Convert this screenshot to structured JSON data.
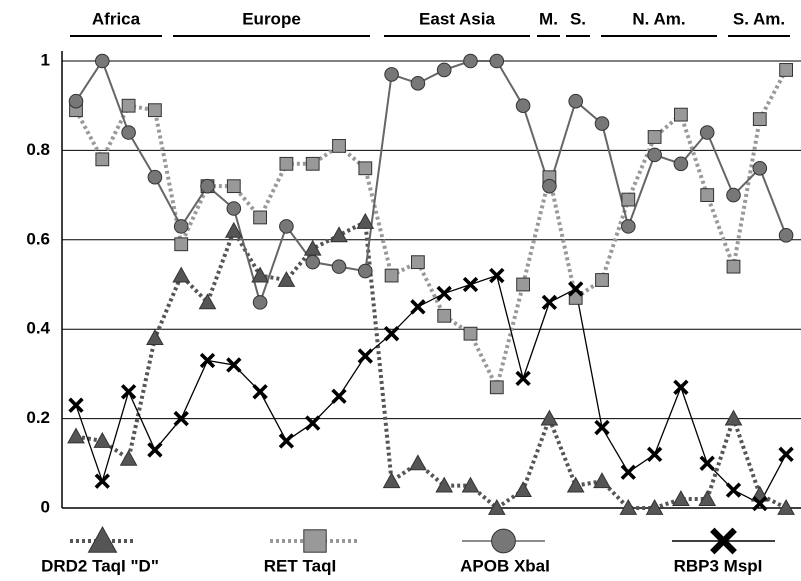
{
  "chart_data": {
    "type": "line",
    "regions": [
      "Africa",
      "Europe",
      "East Asia",
      "M.",
      "S.",
      "N. Am.",
      "S. Am."
    ],
    "categories": [
      null,
      null,
      null,
      null,
      null,
      null,
      null,
      null,
      null,
      null,
      null,
      null,
      null,
      null,
      null,
      null,
      null,
      null,
      null,
      null,
      null,
      null,
      null,
      null,
      null,
      null,
      null,
      null
    ],
    "series": [
      {
        "name": "DRD2 TaqI \"D\"",
        "color": "#555555",
        "marker": "triangle",
        "dash": true,
        "values": [
          0.16,
          0.15,
          0.11,
          0.38,
          0.52,
          0.46,
          0.62,
          0.52,
          0.51,
          0.58,
          0.61,
          0.64,
          0.06,
          0.1,
          0.05,
          0.05,
          0.0,
          0.04,
          0.2,
          0.05,
          0.06,
          0.0,
          0.0,
          0.02,
          0.02,
          0.2,
          0.03,
          0.0
        ]
      },
      {
        "name": "RET TaqI",
        "color": "#999999",
        "marker": "square",
        "dash": true,
        "values": [
          0.89,
          0.78,
          0.9,
          0.89,
          0.59,
          0.72,
          0.72,
          0.65,
          0.77,
          0.77,
          0.81,
          0.76,
          0.52,
          0.55,
          0.43,
          0.39,
          0.27,
          0.5,
          0.74,
          0.47,
          0.51,
          0.69,
          0.83,
          0.88,
          0.7,
          0.54,
          0.87,
          0.98
        ]
      },
      {
        "name": "APOB XbaI",
        "color": "#777777",
        "marker": "circle",
        "dash": false,
        "values": [
          0.91,
          1.0,
          0.84,
          0.74,
          0.63,
          0.72,
          0.67,
          0.46,
          0.63,
          0.55,
          0.54,
          0.53,
          0.97,
          0.95,
          0.98,
          1.0,
          1.0,
          0.9,
          0.72,
          0.91,
          0.86,
          0.63,
          0.79,
          0.77,
          0.84,
          0.7,
          0.76,
          0.61
        ]
      },
      {
        "name": "RBP3 MspI",
        "color": "#000000",
        "marker": "cross",
        "dash": false,
        "values": [
          0.23,
          0.06,
          0.26,
          0.13,
          0.2,
          0.33,
          0.32,
          0.26,
          0.15,
          0.19,
          0.25,
          0.34,
          0.39,
          0.45,
          0.48,
          0.5,
          0.52,
          0.29,
          0.46,
          0.49,
          0.18,
          0.08,
          0.12,
          0.27,
          0.1,
          0.04,
          0.01,
          0.12
        ]
      }
    ],
    "ylim": [
      0,
      1
    ],
    "yticks": [
      0,
      0.2,
      0.4,
      0.6,
      0.8,
      1
    ],
    "grid": true
  }
}
